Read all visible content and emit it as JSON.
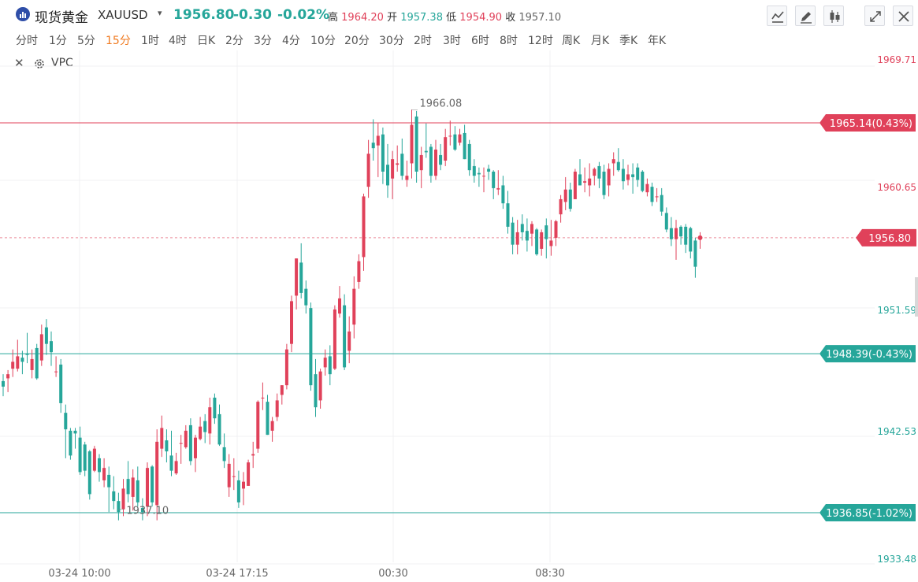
{
  "header": {
    "title": "现货黄金",
    "symbol": "XAUUSD",
    "price": "1956.80",
    "change": "-0.30",
    "change_pct": "-0.02%",
    "high_label": "高",
    "high": "1964.20",
    "open_label": "开",
    "open": "1957.38",
    "low_label": "低",
    "low": "1954.90",
    "close_label": "收",
    "close": "1957.10"
  },
  "toolbar": {
    "icons": [
      "line-chart-icon",
      "draw-icon",
      "candle-style-icon",
      "fullscreen-icon",
      "close-icon"
    ]
  },
  "periods": [
    "分时",
    "1分",
    "5分",
    "15分",
    "1时",
    "4时",
    "日K",
    "2分",
    "3分",
    "4分",
    "10分",
    "20分",
    "30分",
    "2时",
    "3时",
    "6时",
    "8时",
    "12时",
    "周K",
    "月K",
    "季K",
    "年K"
  ],
  "active_period": "15分",
  "indicator": {
    "name": "VPC"
  },
  "chart_data": {
    "type": "candlestick",
    "y_labels": [
      "1969.71",
      "1960.65",
      "1951.59",
      "1942.53",
      "1933.48"
    ],
    "y_label_colors": [
      "#e0415a",
      "#e0415a",
      "#26a69a",
      "#26a69a",
      "#26a69a"
    ],
    "x_labels": [
      "03-24 10:00",
      "03-24 17:15",
      "00:30",
      "08:30"
    ],
    "current_price": "1956.80",
    "h_lines": [
      {
        "label": "1965.14(0.43%)",
        "value": 1965.14,
        "color": "#e0415a"
      },
      {
        "label": "1948.39(-0.43%)",
        "value": 1948.39,
        "color": "#26a69a"
      },
      {
        "label": "1936.85(-1.02%)",
        "value": 1936.85,
        "color": "#26a69a"
      }
    ],
    "annotations": [
      {
        "label": "1966.08",
        "value": 1966.08
      },
      {
        "label": "1937.10",
        "value": 1937.1
      }
    ],
    "up_color": "#e0415a",
    "down_color": "#26a69a",
    "ohlc": [
      [
        1946.4,
        1946.9,
        1945.3,
        1946.0
      ],
      [
        1946.6,
        1947.2,
        1945.6,
        1946.9
      ],
      [
        1947.3,
        1948.7,
        1946.7,
        1947.8
      ],
      [
        1947.3,
        1949.4,
        1947.1,
        1948.2
      ],
      [
        1948.1,
        1948.6,
        1946.9,
        1947.8
      ],
      [
        1948.4,
        1949.9,
        1947.7,
        1948.3
      ],
      [
        1947.2,
        1948.7,
        1946.6,
        1948.0
      ],
      [
        1948.8,
        1949.1,
        1946.5,
        1946.6
      ],
      [
        1947.9,
        1950.5,
        1947.5,
        1949.8
      ],
      [
        1950.3,
        1950.9,
        1948.3,
        1949.1
      ],
      [
        1949.3,
        1950.0,
        1947.5,
        1948.5
      ],
      [
        1947.1,
        1948.2,
        1946.7,
        1947.1
      ],
      [
        1947.6,
        1948.0,
        1944.1,
        1944.8
      ],
      [
        1944.1,
        1944.7,
        1940.8,
        1942.9
      ],
      [
        1942.8,
        1943.0,
        1940.7,
        1941.0
      ],
      [
        1942.8,
        1943.0,
        1941.5,
        1942.6
      ],
      [
        1942.3,
        1943.1,
        1939.6,
        1939.8
      ],
      [
        1941.8,
        1942.0,
        1939.5,
        1939.9
      ],
      [
        1941.3,
        1941.4,
        1937.8,
        1938.2
      ],
      [
        1939.9,
        1941.7,
        1939.8,
        1941.5
      ],
      [
        1940.8,
        1941.1,
        1939.1,
        1939.8
      ],
      [
        1939.2,
        1940.8,
        1938.7,
        1940.1
      ],
      [
        1939.6,
        1940.2,
        1936.9,
        1938.7
      ],
      [
        1938.4,
        1939.5,
        1937.1,
        1937.7
      ],
      [
        1937.7,
        1938.3,
        1936.3,
        1936.9
      ],
      [
        1937.1,
        1939.3,
        1936.6,
        1938.6
      ],
      [
        1939.3,
        1940.6,
        1937.6,
        1938.2
      ],
      [
        1938.0,
        1940.0,
        1937.0,
        1939.4
      ],
      [
        1939.2,
        1940.2,
        1937.3,
        1937.6
      ],
      [
        1937.2,
        1937.9,
        1936.3,
        1936.9
      ],
      [
        1937.3,
        1940.5,
        1936.6,
        1940.1
      ],
      [
        1940.2,
        1940.3,
        1937.3,
        1937.6
      ],
      [
        1937.4,
        1942.9,
        1936.3,
        1942.0
      ],
      [
        1941.5,
        1943.9,
        1940.9,
        1943.0
      ],
      [
        1942.1,
        1942.9,
        1940.5,
        1941.3
      ],
      [
        1941.0,
        1942.8,
        1939.5,
        1939.9
      ],
      [
        1939.7,
        1941.2,
        1939.6,
        1940.6
      ],
      [
        1941.9,
        1942.5,
        1940.4,
        1941.9
      ],
      [
        1941.6,
        1943.2,
        1941.5,
        1942.8
      ],
      [
        1943.2,
        1943.7,
        1940.3,
        1940.6
      ],
      [
        1940.8,
        1942.5,
        1939.8,
        1942.3
      ],
      [
        1942.2,
        1943.8,
        1942.1,
        1943.1
      ],
      [
        1943.5,
        1944.0,
        1941.9,
        1942.7
      ],
      [
        1942.6,
        1945.2,
        1941.8,
        1944.5
      ],
      [
        1945.2,
        1945.5,
        1943.3,
        1943.7
      ],
      [
        1944.0,
        1944.7,
        1941.7,
        1941.8
      ],
      [
        1941.6,
        1942.6,
        1940.1,
        1940.6
      ],
      [
        1938.7,
        1941.1,
        1938.0,
        1940.4
      ],
      [
        1939.5,
        1940.8,
        1938.5,
        1939.5
      ],
      [
        1939.2,
        1939.9,
        1937.2,
        1937.6
      ],
      [
        1938.6,
        1939.8,
        1937.4,
        1939.1
      ],
      [
        1938.8,
        1940.7,
        1938.8,
        1940.5
      ],
      [
        1941.0,
        1942.0,
        1940.1,
        1941.1
      ],
      [
        1941.5,
        1945.0,
        1941.2,
        1944.9
      ],
      [
        1945.2,
        1946.3,
        1944.3,
        1945.2
      ],
      [
        1944.9,
        1945.4,
        1942.5,
        1942.5
      ],
      [
        1942.8,
        1943.8,
        1942.0,
        1943.5
      ],
      [
        1943.8,
        1945.5,
        1943.5,
        1945.0
      ],
      [
        1945.4,
        1946.1,
        1944.7,
        1946.1
      ],
      [
        1946.1,
        1949.1,
        1945.8,
        1948.7
      ],
      [
        1949.1,
        1952.6,
        1948.5,
        1952.2
      ],
      [
        1952.6,
        1955.3,
        1951.6,
        1955.3
      ],
      [
        1955.0,
        1956.4,
        1952.4,
        1952.8
      ],
      [
        1953.1,
        1953.7,
        1951.3,
        1951.9
      ],
      [
        1951.7,
        1952.1,
        1945.7,
        1946.1
      ],
      [
        1946.9,
        1948.0,
        1943.8,
        1944.5
      ],
      [
        1945.0,
        1947.3,
        1944.4,
        1947.1
      ],
      [
        1947.4,
        1948.7,
        1946.8,
        1948.1
      ],
      [
        1948.2,
        1949.0,
        1946.1,
        1946.9
      ],
      [
        1947.3,
        1951.9,
        1947.2,
        1951.6
      ],
      [
        1951.3,
        1953.3,
        1951.0,
        1952.4
      ],
      [
        1951.9,
        1952.7,
        1947.2,
        1947.4
      ],
      [
        1948.6,
        1951.1,
        1947.7,
        1950.0
      ],
      [
        1950.5,
        1954.0,
        1949.5,
        1953.1
      ],
      [
        1953.6,
        1955.6,
        1953.1,
        1955.1
      ],
      [
        1955.4,
        1960.0,
        1954.4,
        1959.8
      ],
      [
        1960.5,
        1963.9,
        1959.7,
        1962.9
      ],
      [
        1963.7,
        1965.4,
        1962.4,
        1963.3
      ],
      [
        1963.5,
        1965.1,
        1961.2,
        1964.2
      ],
      [
        1964.3,
        1964.8,
        1960.7,
        1961.6
      ],
      [
        1962.1,
        1963.6,
        1959.7,
        1960.6
      ],
      [
        1961.1,
        1963.1,
        1959.6,
        1962.5
      ],
      [
        1962.1,
        1963.5,
        1961.6,
        1962.2
      ],
      [
        1962.9,
        1964.0,
        1961.0,
        1961.3
      ],
      [
        1961.0,
        1962.4,
        1960.5,
        1961.3
      ],
      [
        1962.2,
        1966.1,
        1961.1,
        1965.0
      ],
      [
        1965.6,
        1966.0,
        1960.8,
        1961.6
      ],
      [
        1961.7,
        1963.4,
        1960.4,
        1962.8
      ],
      [
        1963.1,
        1965.1,
        1962.6,
        1963.0
      ],
      [
        1963.4,
        1963.6,
        1960.8,
        1961.3
      ],
      [
        1961.3,
        1963.9,
        1961.0,
        1963.2
      ],
      [
        1962.8,
        1963.6,
        1961.7,
        1962.1
      ],
      [
        1962.4,
        1964.7,
        1962.0,
        1964.1
      ],
      [
        1964.2,
        1965.3,
        1963.5,
        1964.2
      ],
      [
        1964.3,
        1964.9,
        1963.1,
        1963.2
      ],
      [
        1963.7,
        1964.7,
        1963.5,
        1964.3
      ],
      [
        1964.4,
        1965.0,
        1962.5,
        1962.5
      ],
      [
        1963.6,
        1963.9,
        1961.3,
        1961.7
      ],
      [
        1962.0,
        1962.5,
        1960.8,
        1961.3
      ],
      [
        1961.5,
        1961.9,
        1960.5,
        1961.4
      ],
      [
        1961.3,
        1961.9,
        1960.1,
        1961.3
      ],
      [
        1961.8,
        1962.1,
        1961.0,
        1961.6
      ],
      [
        1961.6,
        1961.7,
        1959.6,
        1960.4
      ],
      [
        1960.3,
        1961.7,
        1959.9,
        1960.4
      ],
      [
        1960.6,
        1961.3,
        1958.9,
        1959.3
      ],
      [
        1959.3,
        1960.2,
        1957.1,
        1957.6
      ],
      [
        1957.9,
        1958.3,
        1955.6,
        1956.3
      ],
      [
        1956.3,
        1958.1,
        1955.6,
        1957.2
      ],
      [
        1957.8,
        1958.5,
        1956.6,
        1957.2
      ],
      [
        1957.3,
        1958.2,
        1955.8,
        1956.6
      ],
      [
        1957.1,
        1958.0,
        1956.2,
        1957.8
      ],
      [
        1957.4,
        1957.5,
        1955.5,
        1955.6
      ],
      [
        1956.0,
        1957.4,
        1955.5,
        1957.2
      ],
      [
        1957.7,
        1958.2,
        1955.3,
        1956.7
      ],
      [
        1956.2,
        1958.1,
        1955.5,
        1956.6
      ],
      [
        1956.8,
        1958.1,
        1956.2,
        1958.0
      ],
      [
        1958.5,
        1959.9,
        1957.9,
        1959.6
      ],
      [
        1959.4,
        1961.2,
        1958.8,
        1960.3
      ],
      [
        1960.3,
        1960.8,
        1958.7,
        1958.9
      ],
      [
        1959.6,
        1961.8,
        1959.6,
        1961.6
      ],
      [
        1961.4,
        1962.5,
        1960.6,
        1960.6
      ],
      [
        1960.8,
        1961.9,
        1960.1,
        1960.9
      ],
      [
        1960.6,
        1962.2,
        1959.8,
        1961.1
      ],
      [
        1961.3,
        1961.9,
        1960.6,
        1961.8
      ],
      [
        1962.0,
        1962.3,
        1960.4,
        1961.1
      ],
      [
        1961.6,
        1962.1,
        1959.6,
        1959.9
      ],
      [
        1960.6,
        1962.2,
        1959.8,
        1961.8
      ],
      [
        1962.2,
        1963.0,
        1961.3,
        1962.5
      ],
      [
        1962.3,
        1963.3,
        1961.6,
        1961.7
      ],
      [
        1961.8,
        1962.5,
        1960.3,
        1960.9
      ],
      [
        1961.0,
        1962.1,
        1960.6,
        1961.4
      ],
      [
        1961.4,
        1962.2,
        1960.0,
        1961.2
      ],
      [
        1961.9,
        1962.2,
        1960.5,
        1961.0
      ],
      [
        1961.6,
        1961.7,
        1960.1,
        1960.2
      ],
      [
        1960.1,
        1961.1,
        1959.8,
        1960.7
      ],
      [
        1960.5,
        1960.8,
        1959.1,
        1959.4
      ],
      [
        1959.8,
        1960.4,
        1959.4,
        1959.8
      ],
      [
        1959.9,
        1960.4,
        1958.4,
        1958.7
      ],
      [
        1958.6,
        1959.0,
        1957.2,
        1957.4
      ],
      [
        1957.5,
        1958.3,
        1956.2,
        1956.7
      ],
      [
        1956.7,
        1958.1,
        1955.2,
        1957.5
      ],
      [
        1957.6,
        1957.7,
        1956.3,
        1956.9
      ],
      [
        1957.6,
        1957.8,
        1955.7,
        1956.3
      ],
      [
        1957.5,
        1957.6,
        1955.3,
        1955.8
      ],
      [
        1956.6,
        1956.8,
        1953.9,
        1954.7
      ],
      [
        1956.8,
        1957.2,
        1956.0,
        1956.8
      ]
    ]
  }
}
